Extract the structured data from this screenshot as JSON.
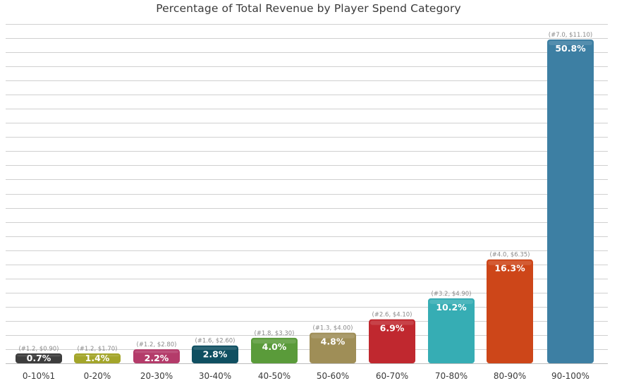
{
  "chart_data": {
    "type": "bar",
    "title": "Percentage of Total Revenue by Player Spend Category",
    "xlabel": "",
    "ylabel": "",
    "ylim": [
      0,
      52
    ],
    "grid": true,
    "categories": [
      "0-10%1",
      "0-20%",
      "20-30%",
      "30-40%",
      "40-50%",
      "50-60%",
      "60-70%",
      "70-80%",
      "80-90%",
      "90-100%"
    ],
    "values": [
      0.7,
      1.4,
      2.2,
      2.8,
      4.0,
      4.8,
      6.9,
      10.2,
      16.3,
      50.8
    ],
    "value_labels": [
      "0.7%",
      "1.4%",
      "2.2%",
      "2.8%",
      "4.0%",
      "4.8%",
      "6.9%",
      "10.2%",
      "16.3%",
      "50.8%"
    ],
    "notes": [
      "(#1.2, $0.90)",
      "(#1.2, $1.70)",
      "(#1.2, $2.80)",
      "(#1.6, $2.60)",
      "(#1.8, $3.30)",
      "(#1.3, $4.00)",
      "(#2.6, $4.10)",
      "(#3.2, $4.90)",
      "(#4.0, $6.35)",
      "(#7.0, $11.10)"
    ],
    "colors": [
      "#3d3d3d",
      "#a3a52a",
      "#b43b6a",
      "#0f4f61",
      "#5a9b3a",
      "#9f8e57",
      "#c0282f",
      "#36adb4",
      "#cd4619",
      "#3d7fa3"
    ]
  }
}
